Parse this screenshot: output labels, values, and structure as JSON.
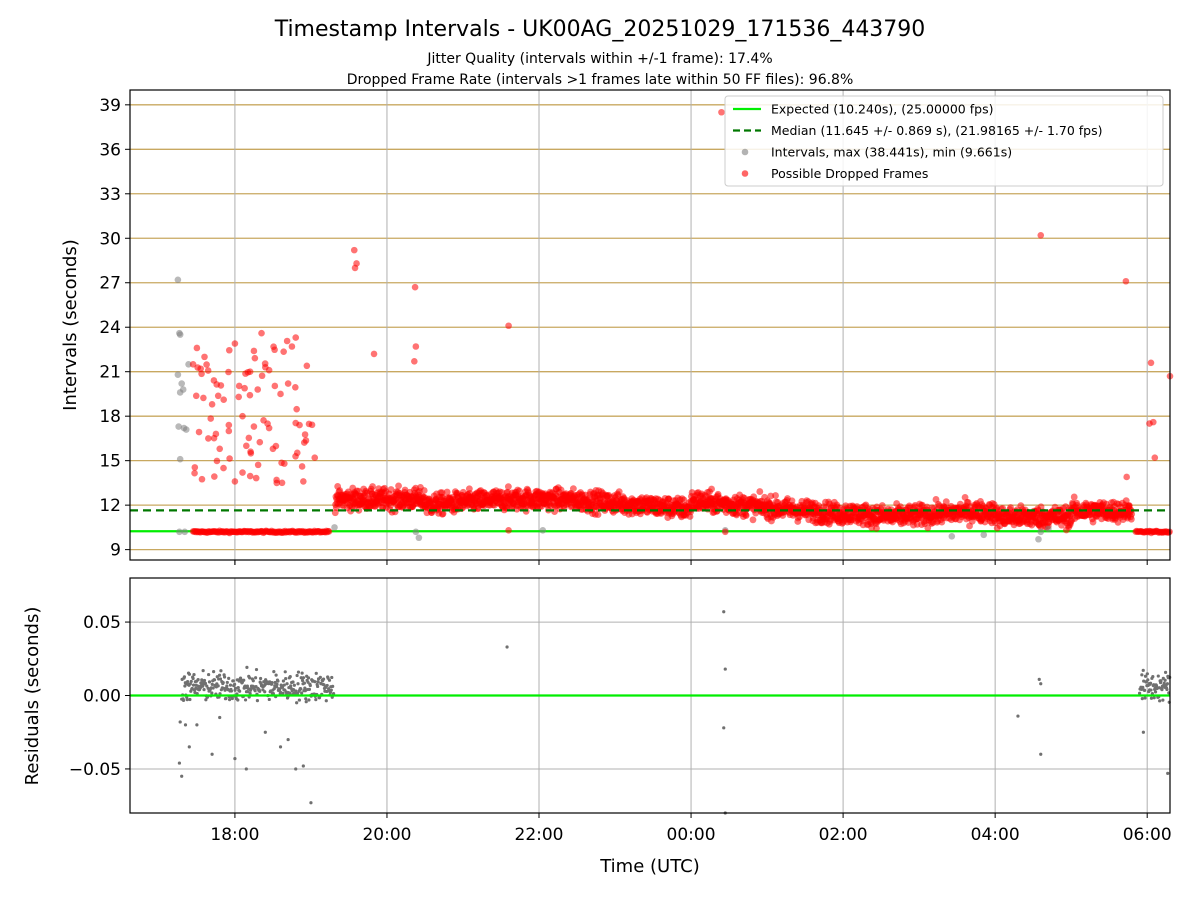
{
  "figure": {
    "title": "Timestamp Intervals - UK00AG_20251029_171536_443790",
    "subtitle_1": "Jitter Quality (intervals within +/-1 frame): 17.4%",
    "subtitle_2": "Dropped Frame Rate (intervals >1 frames late within 50 FF files): 96.8%"
  },
  "colors": {
    "expected": "#00ee00",
    "median": "#007700",
    "intervals": "#808080",
    "dropped": "#ff0000",
    "hgrid_top": "#c8a860",
    "grid": "#b0b0b0",
    "residual_points": "#707070"
  },
  "chart_data": [
    {
      "type": "scatter",
      "title": "",
      "xlabel": "",
      "ylabel": "Intervals (seconds)",
      "xlim_hours": [
        16.62,
        30.3
      ],
      "ylim": [
        8.3,
        40.0
      ],
      "x_tick_hours": [
        18,
        20,
        22,
        24,
        26,
        28,
        30
      ],
      "x_tick_labels": [],
      "y_ticks": [
        9,
        12,
        15,
        18,
        21,
        24,
        27,
        30,
        33,
        36,
        39
      ],
      "y_tick_labels": [
        "9",
        "12",
        "15",
        "18",
        "21",
        "24",
        "27",
        "30",
        "33",
        "36",
        "39"
      ],
      "grid": true,
      "legend_position": "top-right",
      "expected_interval": 10.24,
      "median_interval": 11.645,
      "series": [
        {
          "name": "Expected (10.240s), (25.00000 fps)",
          "kind": "hline",
          "value": 10.24
        },
        {
          "name": "Median (11.645 +/- 0.869 s), (21.98165 +/- 1.70 fps)",
          "kind": "dashed-hline",
          "value": 11.645
        },
        {
          "name": "Intervals, max (38.441s), min (9.661s)",
          "kind": "points",
          "points": [
            [
              17.25,
              27.2
            ],
            [
              17.27,
              23.6
            ],
            [
              17.28,
              23.5
            ],
            [
              17.25,
              20.8
            ],
            [
              17.3,
              20.2
            ],
            [
              17.32,
              19.8
            ],
            [
              17.28,
              19.6
            ],
            [
              17.26,
              17.3
            ],
            [
              17.33,
              17.2
            ],
            [
              17.36,
              17.1
            ],
            [
              17.28,
              15.1
            ],
            [
              17.39,
              21.5
            ],
            [
              17.27,
              10.2
            ],
            [
              17.34,
              10.2
            ],
            [
              19.31,
              10.5
            ],
            [
              20.38,
              10.2
            ],
            [
              20.42,
              9.8
            ],
            [
              22.05,
              10.3
            ],
            [
              24.45,
              10.3
            ],
            [
              28.6,
              10.2
            ],
            [
              28.7,
              10.4
            ],
            [
              27.43,
              9.9
            ],
            [
              27.85,
              10.0
            ],
            [
              28.57,
              9.7
            ]
          ]
        },
        {
          "name": "Possible Dropped Frames",
          "kind": "points",
          "points": [
            [
              17.45,
              21.5
            ],
            [
              17.5,
              22.6
            ],
            [
              17.55,
              21.2
            ],
            [
              17.6,
              22.0
            ],
            [
              17.7,
              18.8
            ],
            [
              17.75,
              16.8
            ],
            [
              17.8,
              15.8
            ],
            [
              17.85,
              14.5
            ],
            [
              17.92,
              17.4
            ],
            [
              18.0,
              22.9
            ],
            [
              18.05,
              19.3
            ],
            [
              18.1,
              18.0
            ],
            [
              18.15,
              16.0
            ],
            [
              18.2,
              21.0
            ],
            [
              18.25,
              22.4
            ],
            [
              18.3,
              19.8
            ],
            [
              18.4,
              21.3
            ],
            [
              18.45,
              17.2
            ],
            [
              18.5,
              15.8
            ],
            [
              18.55,
              13.5
            ],
            [
              18.6,
              19.5
            ],
            [
              18.65,
              14.8
            ],
            [
              18.7,
              20.2
            ],
            [
              18.75,
              22.7
            ],
            [
              18.8,
              23.3
            ],
            [
              18.85,
              17.4
            ],
            [
              18.9,
              13.6
            ],
            [
              19.05,
              15.2
            ],
            [
              17.92,
              17.0
            ],
            [
              18.35,
              23.6
            ],
            [
              18.45,
              21.1
            ],
            [
              17.65,
              16.5
            ],
            [
              18.0,
              13.6
            ],
            [
              18.1,
              14.2
            ],
            [
              18.25,
              17.3
            ],
            [
              19.57,
              29.2
            ],
            [
              19.58,
              28.0
            ],
            [
              19.6,
              28.3
            ],
            [
              19.83,
              22.2
            ],
            [
              20.37,
              26.7
            ],
            [
              20.38,
              22.7
            ],
            [
              20.36,
              21.7
            ],
            [
              21.6,
              24.1
            ],
            [
              24.4,
              38.5
            ],
            [
              28.6,
              30.2
            ],
            [
              29.72,
              27.1
            ],
            [
              30.05,
              21.6
            ],
            [
              30.08,
              17.6
            ],
            [
              30.1,
              15.2
            ],
            [
              30.3,
              20.7
            ],
            [
              29.73,
              13.9
            ],
            [
              30.03,
              17.5
            ],
            [
              21.6,
              10.3
            ],
            [
              24.45,
              10.2
            ]
          ]
        }
      ]
    },
    {
      "type": "scatter",
      "title": "",
      "xlabel": "Time (UTC)",
      "ylabel": "Residuals (seconds)",
      "xlim_hours": [
        16.62,
        30.3
      ],
      "ylim": [
        -0.08,
        0.08
      ],
      "x_tick_hours": [
        18,
        20,
        22,
        24,
        26,
        28,
        30
      ],
      "x_tick_labels": [
        "18:00",
        "20:00",
        "22:00",
        "00:00",
        "02:00",
        "04:00",
        "06:00"
      ],
      "y_ticks": [
        -0.05,
        0.0,
        0.05
      ],
      "y_tick_labels": [
        "−0.05",
        "0.00",
        "0.05"
      ],
      "grid": true,
      "zero_line": 0.0,
      "points": [
        [
          21.58,
          0.033
        ],
        [
          24.43,
          0.057
        ],
        [
          24.45,
          0.018
        ],
        [
          24.43,
          -0.022
        ],
        [
          24.45,
          -0.08
        ],
        [
          28.3,
          -0.014
        ],
        [
          28.58,
          0.011
        ],
        [
          28.6,
          0.008
        ],
        [
          28.6,
          -0.04
        ],
        [
          29.95,
          -0.025
        ],
        [
          30.27,
          -0.053
        ],
        [
          19.0,
          -0.073
        ],
        [
          17.3,
          -0.055
        ],
        [
          17.27,
          -0.046
        ],
        [
          17.4,
          -0.035
        ],
        [
          17.7,
          -0.04
        ],
        [
          18.0,
          -0.043
        ],
        [
          18.15,
          -0.05
        ],
        [
          18.8,
          -0.05
        ],
        [
          18.9,
          -0.048
        ],
        [
          18.6,
          -0.035
        ],
        [
          17.5,
          -0.02
        ],
        [
          17.8,
          -0.015
        ],
        [
          18.4,
          -0.025
        ],
        [
          18.7,
          -0.03
        ],
        [
          17.35,
          -0.02
        ],
        [
          17.28,
          -0.018
        ]
      ]
    }
  ]
}
